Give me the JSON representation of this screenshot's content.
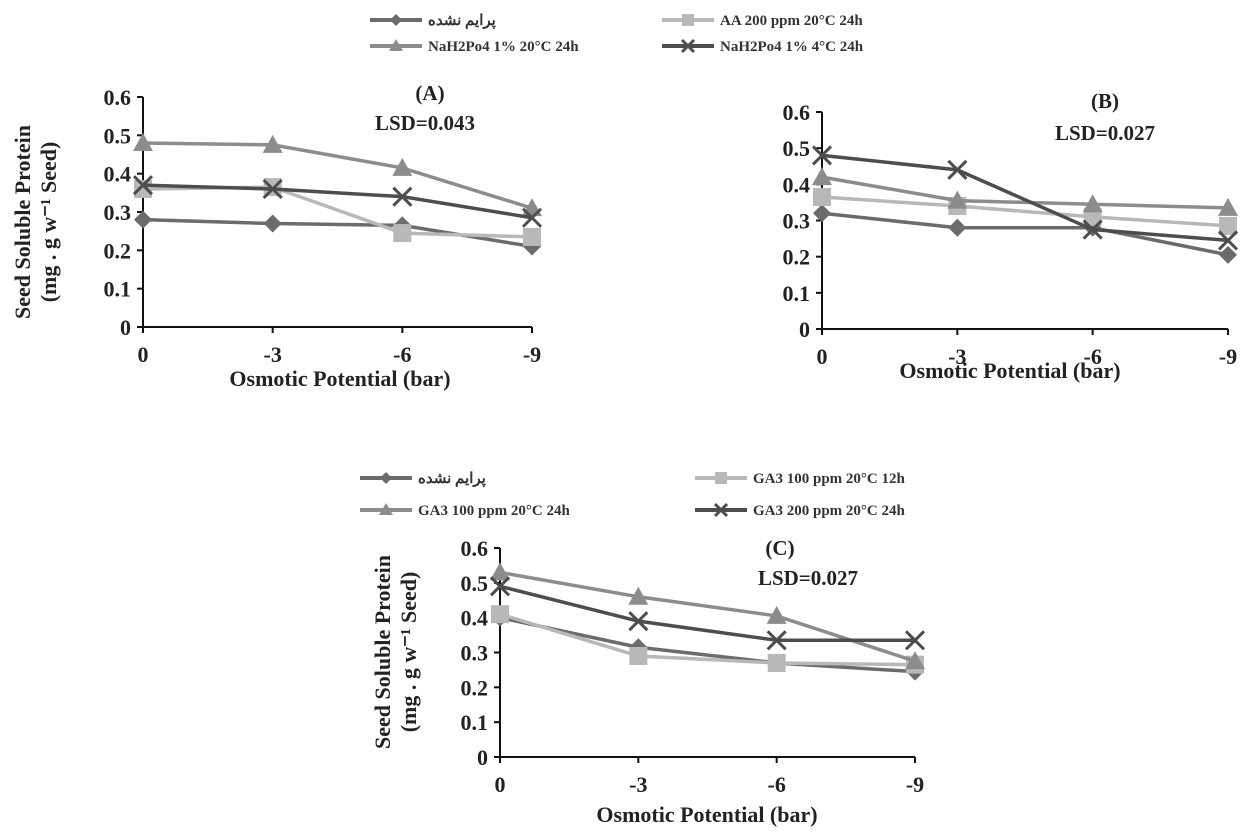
{
  "chart_data": [
    {
      "type": "line",
      "panel_label": "(A)",
      "annotation": "LSD=0.043",
      "xlabel": "Osmotic Potential (bar)",
      "ylabel": [
        "Seed Soluble Protein",
        "(mg . g w⁻¹ Seed)"
      ],
      "categories": [
        "0",
        "-3",
        "-6",
        "-9"
      ],
      "yticks": [
        "0",
        "0.1",
        "0.2",
        "0.3",
        "0.4",
        "0.5",
        "0.6"
      ],
      "ylim": [
        0,
        0.6
      ],
      "legend": {
        "placement": "top",
        "columns": 2
      },
      "series": [
        {
          "name": "پرایم نشده",
          "values": [
            0.28,
            0.27,
            0.265,
            0.21
          ],
          "color": "#6b6b6b",
          "marker": "diamond"
        },
        {
          "name": "AA 200 ppm 20°C 24h",
          "values": [
            0.36,
            0.365,
            0.245,
            0.235
          ],
          "color": "#b8b8b8",
          "marker": "square"
        },
        {
          "name": "NaH2Po4 1% 20°C 24h",
          "values": [
            0.48,
            0.475,
            0.415,
            0.31
          ],
          "color": "#8c8c8c",
          "marker": "triangle"
        },
        {
          "name": "NaH2Po4 1% 4°C 24h",
          "values": [
            0.37,
            0.36,
            0.34,
            0.285
          ],
          "color": "#4d4d4d",
          "marker": "cross"
        }
      ]
    },
    {
      "type": "line",
      "panel_label": "(B)",
      "annotation": "LSD=0.027",
      "xlabel": "Osmotic Potential (bar)",
      "ylabel": [],
      "categories": [
        "0",
        "-3",
        "-6",
        "-9"
      ],
      "yticks": [
        "0",
        "0.1",
        "0.2",
        "0.3",
        "0.4",
        "0.5",
        "0.6"
      ],
      "ylim": [
        0,
        0.6
      ],
      "series": [
        {
          "values": [
            0.32,
            0.28,
            0.28,
            0.205
          ],
          "color": "#6b6b6b",
          "marker": "diamond"
        },
        {
          "values": [
            0.365,
            0.34,
            0.31,
            0.285
          ],
          "color": "#b8b8b8",
          "marker": "square"
        },
        {
          "values": [
            0.42,
            0.355,
            0.345,
            0.335
          ],
          "color": "#8c8c8c",
          "marker": "triangle"
        },
        {
          "values": [
            0.48,
            0.44,
            0.275,
            0.245
          ],
          "color": "#4d4d4d",
          "marker": "cross"
        }
      ]
    },
    {
      "type": "line",
      "panel_label": "(C)",
      "annotation": "LSD=0.027",
      "xlabel": "Osmotic Potential (bar)",
      "ylabel": [
        "Seed Soluble Protein",
        "(mg . g w⁻¹ Seed)"
      ],
      "categories": [
        "0",
        "-3",
        "-6",
        "-9"
      ],
      "yticks": [
        "0",
        "0.1",
        "0.2",
        "0.3",
        "0.4",
        "0.5",
        "0.6"
      ],
      "ylim": [
        0,
        0.6
      ],
      "legend": {
        "placement": "top",
        "columns": 2
      },
      "series": [
        {
          "name": "پرایم نشده",
          "values": [
            0.4,
            0.315,
            0.27,
            0.245
          ],
          "color": "#6b6b6b",
          "marker": "diamond"
        },
        {
          "name": "GA3 100 ppm 20°C 12h",
          "values": [
            0.41,
            0.29,
            0.27,
            0.265
          ],
          "color": "#b8b8b8",
          "marker": "square"
        },
        {
          "name": "GA3 100 ppm 20°C 24h",
          "values": [
            0.53,
            0.46,
            0.405,
            0.275
          ],
          "color": "#8c8c8c",
          "marker": "triangle"
        },
        {
          "name": "GA3 200 ppm 20°C 24h",
          "values": [
            0.49,
            0.39,
            0.335,
            0.335
          ],
          "color": "#4d4d4d",
          "marker": "cross"
        }
      ]
    }
  ]
}
